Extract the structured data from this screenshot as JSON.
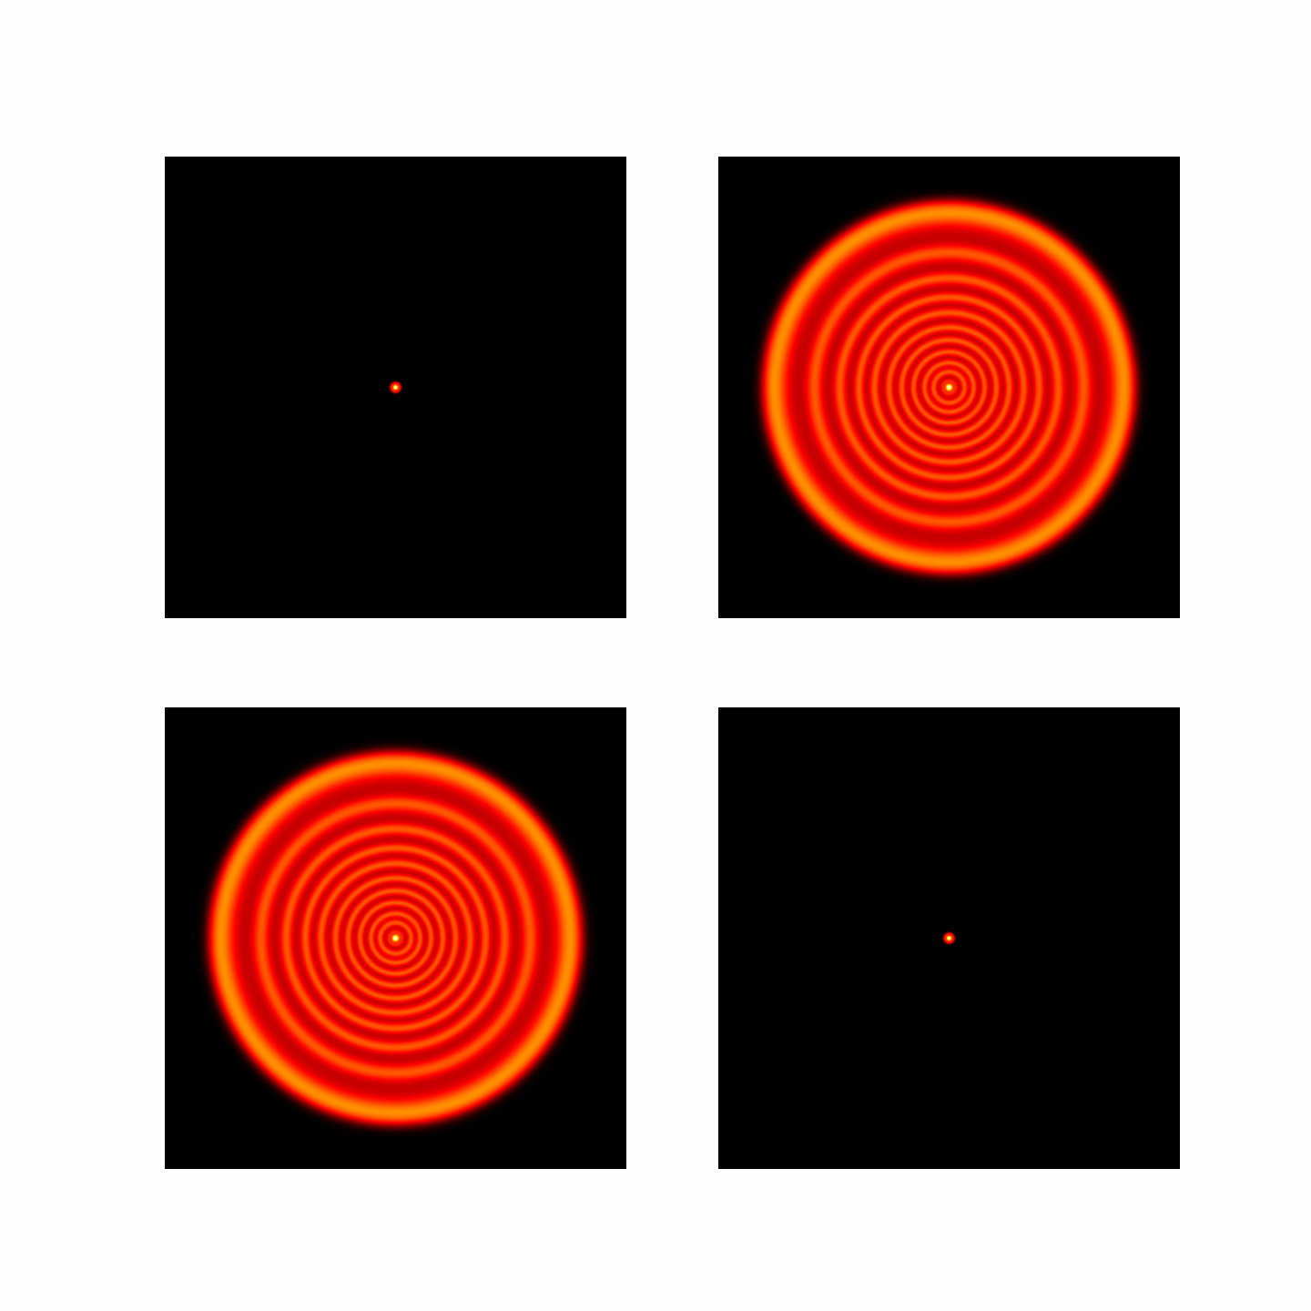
{
  "chart_data": [
    {
      "type": "image",
      "colormap": "hot"
    },
    {
      "type": "image",
      "colormap": "hot"
    },
    {
      "type": "image",
      "colormap": "hot"
    },
    {
      "type": "image",
      "colormap": "hot"
    }
  ]
}
